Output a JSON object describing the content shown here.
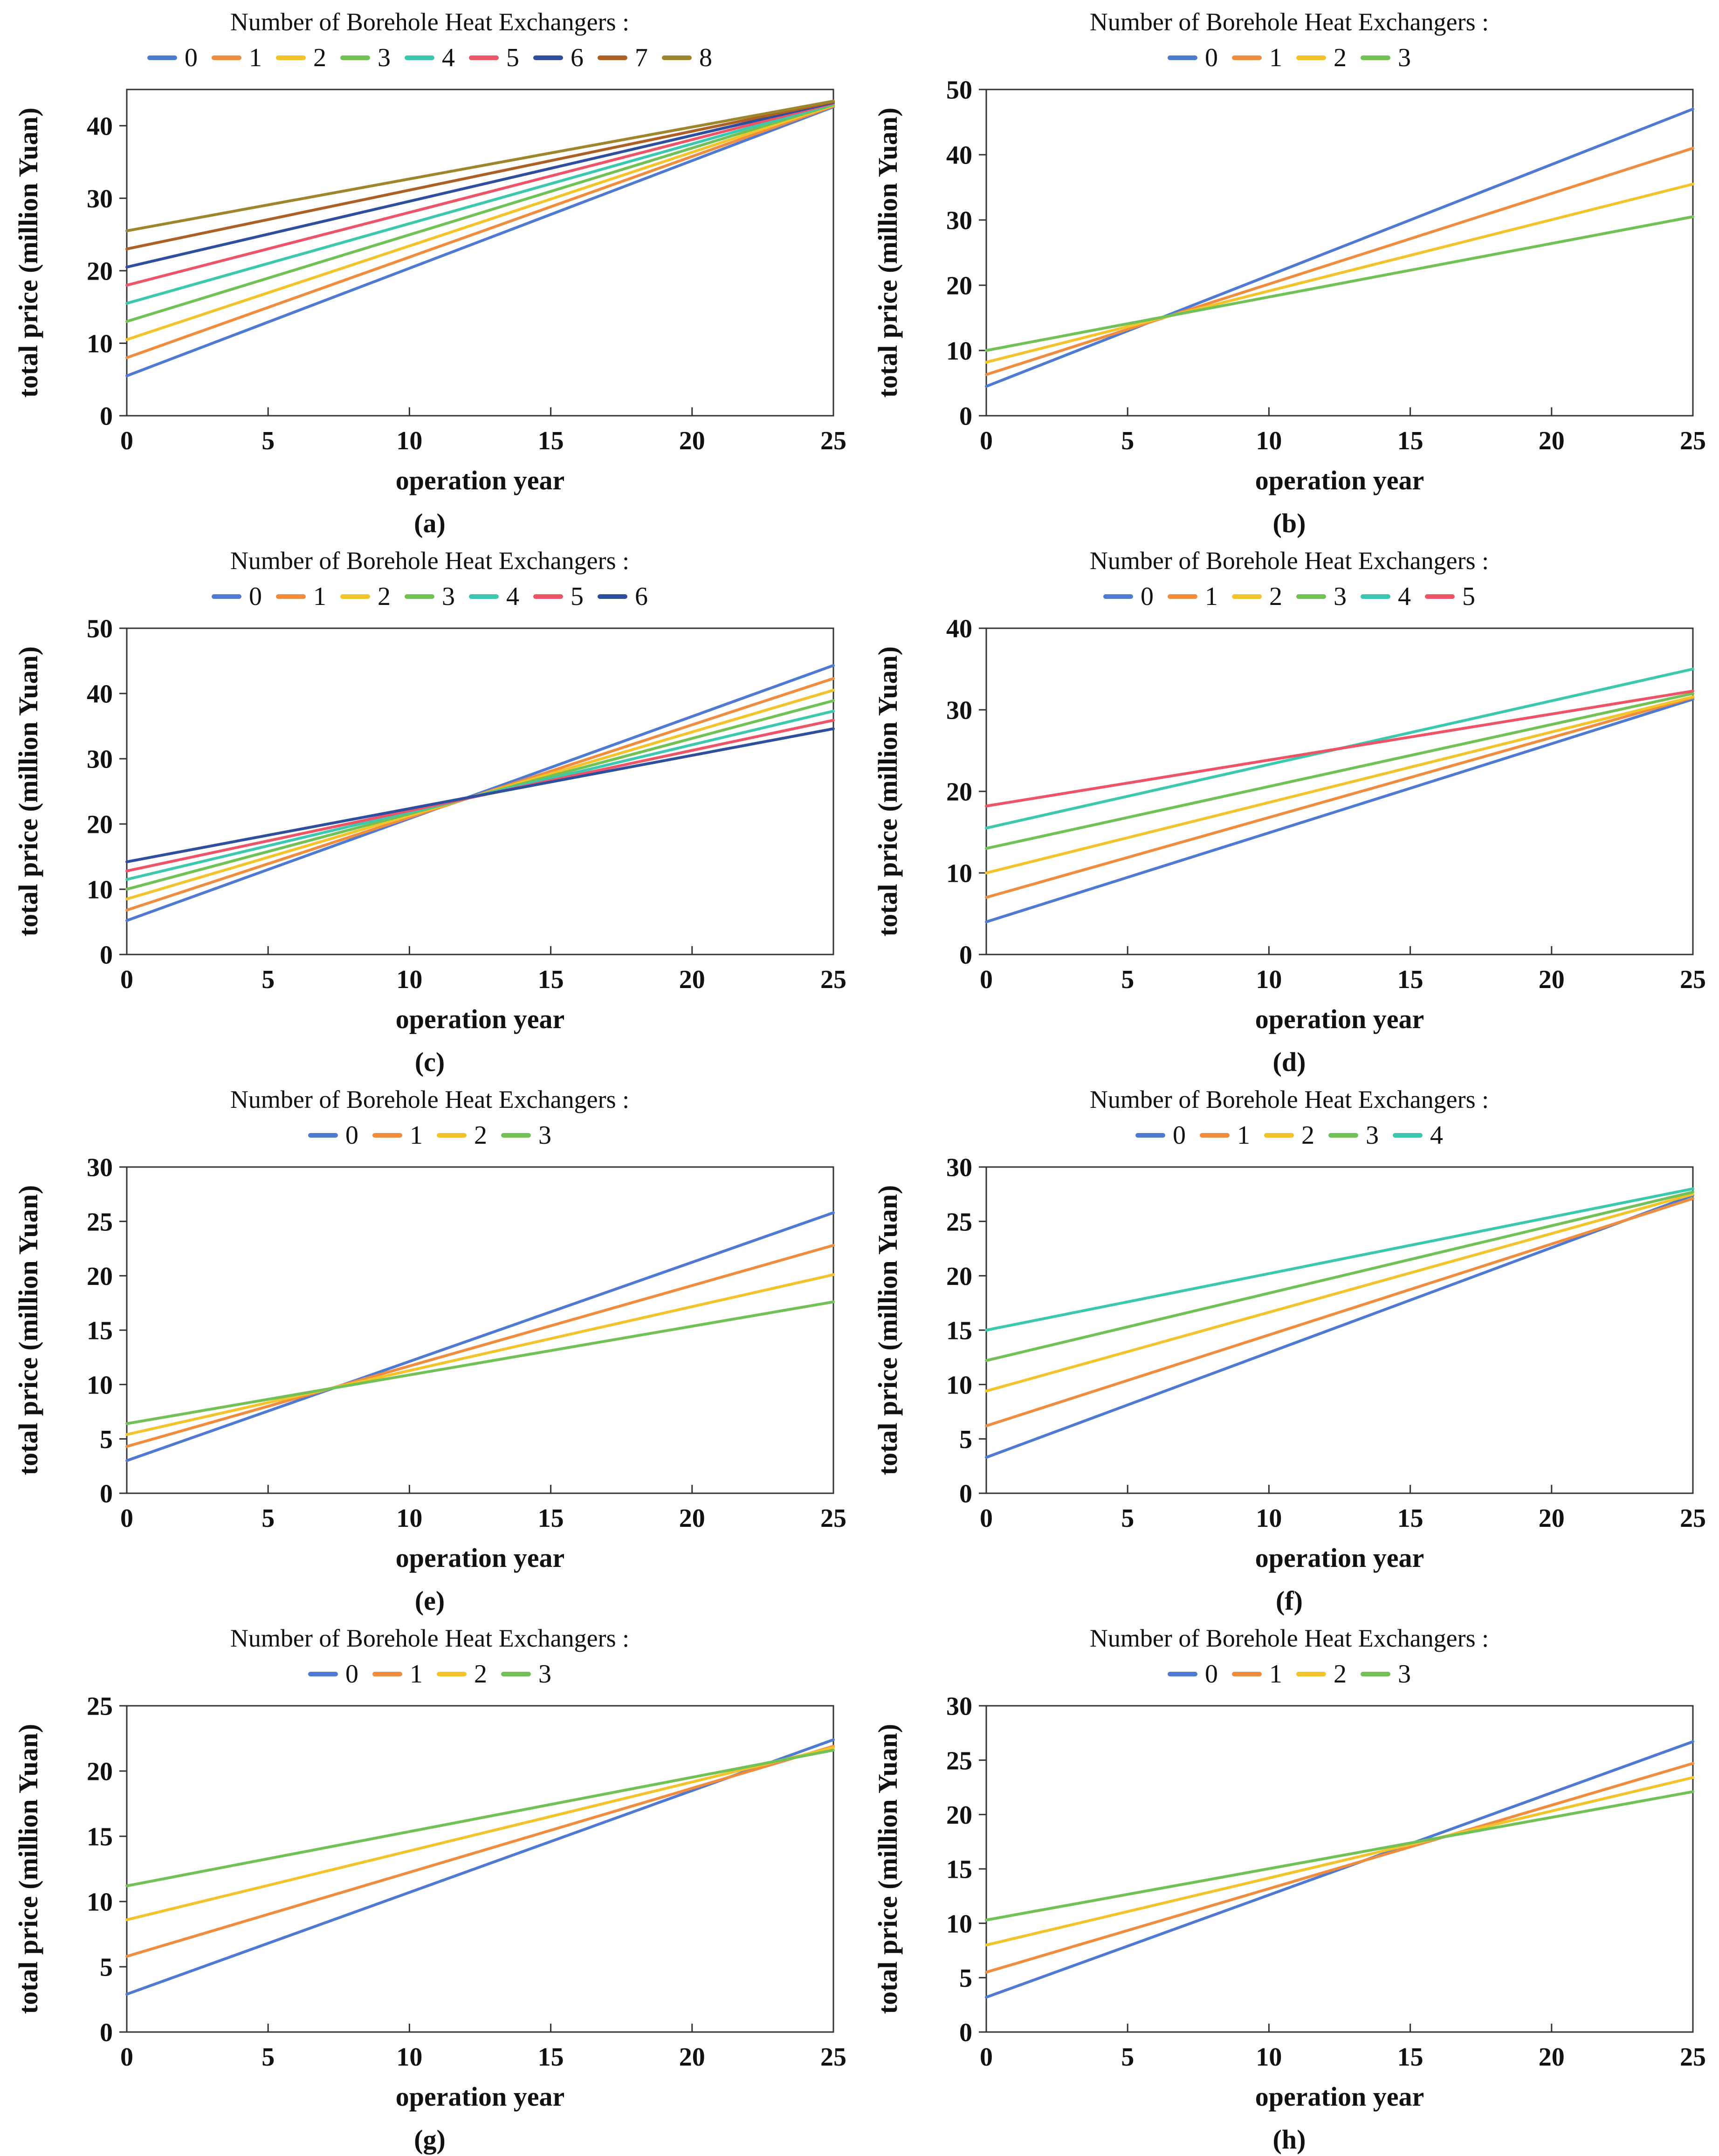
{
  "page": {
    "background": "#ffffff"
  },
  "palette": [
    "#4e7ad1",
    "#f08c3e",
    "#f3c32c",
    "#72c156",
    "#3bc8ae",
    "#ee5468",
    "#2d4f9e",
    "#ad5f24",
    "#9d862c"
  ],
  "axis_color": "#333333",
  "chart_data": [
    {
      "type": "line",
      "caption": "(a)",
      "title": "Number of Borehole Heat Exchangers :",
      "xlabel": "operation year",
      "ylabel": "total price (million Yuan)",
      "x": [
        0,
        25
      ],
      "xlim": [
        0,
        25
      ],
      "xticks": [
        0,
        5,
        10,
        15,
        20,
        25
      ],
      "ylim": [
        0,
        45
      ],
      "yticks": [
        0,
        10,
        20,
        30,
        40
      ],
      "grid": false,
      "legend_position": "top",
      "series": [
        {
          "name": "0",
          "values": [
            5.5,
            42.6
          ]
        },
        {
          "name": "1",
          "values": [
            8.0,
            42.7
          ]
        },
        {
          "name": "2",
          "values": [
            10.5,
            42.8
          ]
        },
        {
          "name": "3",
          "values": [
            13.0,
            42.9
          ]
        },
        {
          "name": "4",
          "values": [
            15.5,
            43.0
          ]
        },
        {
          "name": "5",
          "values": [
            18.0,
            43.1
          ]
        },
        {
          "name": "6",
          "values": [
            20.5,
            43.2
          ]
        },
        {
          "name": "7",
          "values": [
            23.0,
            43.3
          ]
        },
        {
          "name": "8",
          "values": [
            25.5,
            43.4
          ]
        }
      ]
    },
    {
      "type": "line",
      "caption": "(b)",
      "title": "Number of Borehole Heat Exchangers :",
      "xlabel": "operation year",
      "ylabel": "total price (million Yuan)",
      "x": [
        0,
        25
      ],
      "xlim": [
        0,
        25
      ],
      "xticks": [
        0,
        5,
        10,
        15,
        20,
        25
      ],
      "ylim": [
        0,
        50
      ],
      "yticks": [
        0,
        10,
        20,
        30,
        40,
        50
      ],
      "grid": false,
      "legend_position": "top",
      "series": [
        {
          "name": "0",
          "values": [
            4.5,
            47.0
          ]
        },
        {
          "name": "1",
          "values": [
            6.3,
            41.0
          ]
        },
        {
          "name": "2",
          "values": [
            8.2,
            35.5
          ]
        },
        {
          "name": "3",
          "values": [
            10.0,
            30.5
          ]
        }
      ]
    },
    {
      "type": "line",
      "caption": "(c)",
      "title": "Number of Borehole Heat Exchangers :",
      "xlabel": "operation year",
      "ylabel": "total price (million Yuan)",
      "x": [
        0,
        25
      ],
      "xlim": [
        0,
        25
      ],
      "xticks": [
        0,
        5,
        10,
        15,
        20,
        25
      ],
      "ylim": [
        0,
        50
      ],
      "yticks": [
        0,
        10,
        20,
        30,
        40,
        50
      ],
      "grid": false,
      "legend_position": "top",
      "series": [
        {
          "name": "0",
          "values": [
            5.2,
            44.3
          ]
        },
        {
          "name": "1",
          "values": [
            6.8,
            42.3
          ]
        },
        {
          "name": "2",
          "values": [
            8.5,
            40.5
          ]
        },
        {
          "name": "3",
          "values": [
            10.0,
            38.9
          ]
        },
        {
          "name": "4",
          "values": [
            11.5,
            37.3
          ]
        },
        {
          "name": "5",
          "values": [
            12.8,
            35.9
          ]
        },
        {
          "name": "6",
          "values": [
            14.2,
            34.6
          ]
        }
      ]
    },
    {
      "type": "line",
      "caption": "(d)",
      "title": "Number of Borehole Heat Exchangers :",
      "xlabel": "operation year",
      "ylabel": "total price (million Yuan)",
      "x": [
        0,
        25
      ],
      "xlim": [
        0,
        25
      ],
      "xticks": [
        0,
        5,
        10,
        15,
        20,
        25
      ],
      "ylim": [
        0,
        40
      ],
      "yticks": [
        0,
        10,
        20,
        30,
        40
      ],
      "grid": false,
      "legend_position": "top",
      "series": [
        {
          "name": "0",
          "values": [
            4.0,
            31.3
          ]
        },
        {
          "name": "1",
          "values": [
            7.0,
            31.5
          ]
        },
        {
          "name": "2",
          "values": [
            10.0,
            31.6
          ]
        },
        {
          "name": "3",
          "values": [
            13.0,
            32.0
          ]
        },
        {
          "name": "4",
          "values": [
            15.5,
            35.0
          ]
        },
        {
          "name": "5",
          "values": [
            18.2,
            32.3
          ]
        }
      ]
    },
    {
      "type": "line",
      "caption": "(e)",
      "title": "Number of Borehole Heat Exchangers :",
      "xlabel": "operation year",
      "ylabel": "total price (million Yuan)",
      "x": [
        0,
        25
      ],
      "xlim": [
        0,
        25
      ],
      "xticks": [
        0,
        5,
        10,
        15,
        20,
        25
      ],
      "ylim": [
        0,
        30
      ],
      "yticks": [
        0,
        5,
        10,
        15,
        20,
        25,
        30
      ],
      "grid": false,
      "legend_position": "top",
      "series": [
        {
          "name": "0",
          "values": [
            3.0,
            25.8
          ]
        },
        {
          "name": "1",
          "values": [
            4.3,
            22.8
          ]
        },
        {
          "name": "2",
          "values": [
            5.4,
            20.1
          ]
        },
        {
          "name": "3",
          "values": [
            6.4,
            17.6
          ]
        }
      ]
    },
    {
      "type": "line",
      "caption": "(f)",
      "title": "Number of Borehole Heat Exchangers :",
      "xlabel": "operation year",
      "ylabel": "total price (million Yuan)",
      "x": [
        0,
        25
      ],
      "xlim": [
        0,
        25
      ],
      "xticks": [
        0,
        5,
        10,
        15,
        20,
        25
      ],
      "ylim": [
        0,
        30
      ],
      "yticks": [
        0,
        5,
        10,
        15,
        20,
        25,
        30
      ],
      "grid": false,
      "legend_position": "top",
      "series": [
        {
          "name": "0",
          "values": [
            3.3,
            27.4
          ]
        },
        {
          "name": "1",
          "values": [
            6.2,
            27.1
          ]
        },
        {
          "name": "2",
          "values": [
            9.4,
            27.5
          ]
        },
        {
          "name": "3",
          "values": [
            12.2,
            27.7
          ]
        },
        {
          "name": "4",
          "values": [
            15.0,
            28.0
          ]
        }
      ]
    },
    {
      "type": "line",
      "caption": "(g)",
      "title": "Number of Borehole Heat Exchangers :",
      "xlabel": "operation year",
      "ylabel": "total price (million Yuan)",
      "x": [
        0,
        25
      ],
      "xlim": [
        0,
        25
      ],
      "xticks": [
        0,
        5,
        10,
        15,
        20,
        25
      ],
      "ylim": [
        0,
        25
      ],
      "yticks": [
        0,
        5,
        10,
        15,
        20,
        25
      ],
      "grid": false,
      "legend_position": "top",
      "series": [
        {
          "name": "0",
          "values": [
            2.9,
            22.4
          ]
        },
        {
          "name": "1",
          "values": [
            5.8,
            21.9
          ]
        },
        {
          "name": "2",
          "values": [
            8.6,
            21.8
          ]
        },
        {
          "name": "3",
          "values": [
            11.2,
            21.6
          ]
        }
      ]
    },
    {
      "type": "line",
      "caption": "(h)",
      "title": "Number of Borehole Heat Exchangers :",
      "xlabel": "operation year",
      "ylabel": "total price (million Yuan)",
      "x": [
        0,
        25
      ],
      "xlim": [
        0,
        25
      ],
      "xticks": [
        0,
        5,
        10,
        15,
        20,
        25
      ],
      "ylim": [
        0,
        30
      ],
      "yticks": [
        0,
        5,
        10,
        15,
        20,
        25,
        30
      ],
      "grid": false,
      "legend_position": "top",
      "series": [
        {
          "name": "0",
          "values": [
            3.2,
            26.7
          ]
        },
        {
          "name": "1",
          "values": [
            5.5,
            24.7
          ]
        },
        {
          "name": "2",
          "values": [
            8.0,
            23.4
          ]
        },
        {
          "name": "3",
          "values": [
            10.3,
            22.1
          ]
        }
      ]
    }
  ]
}
